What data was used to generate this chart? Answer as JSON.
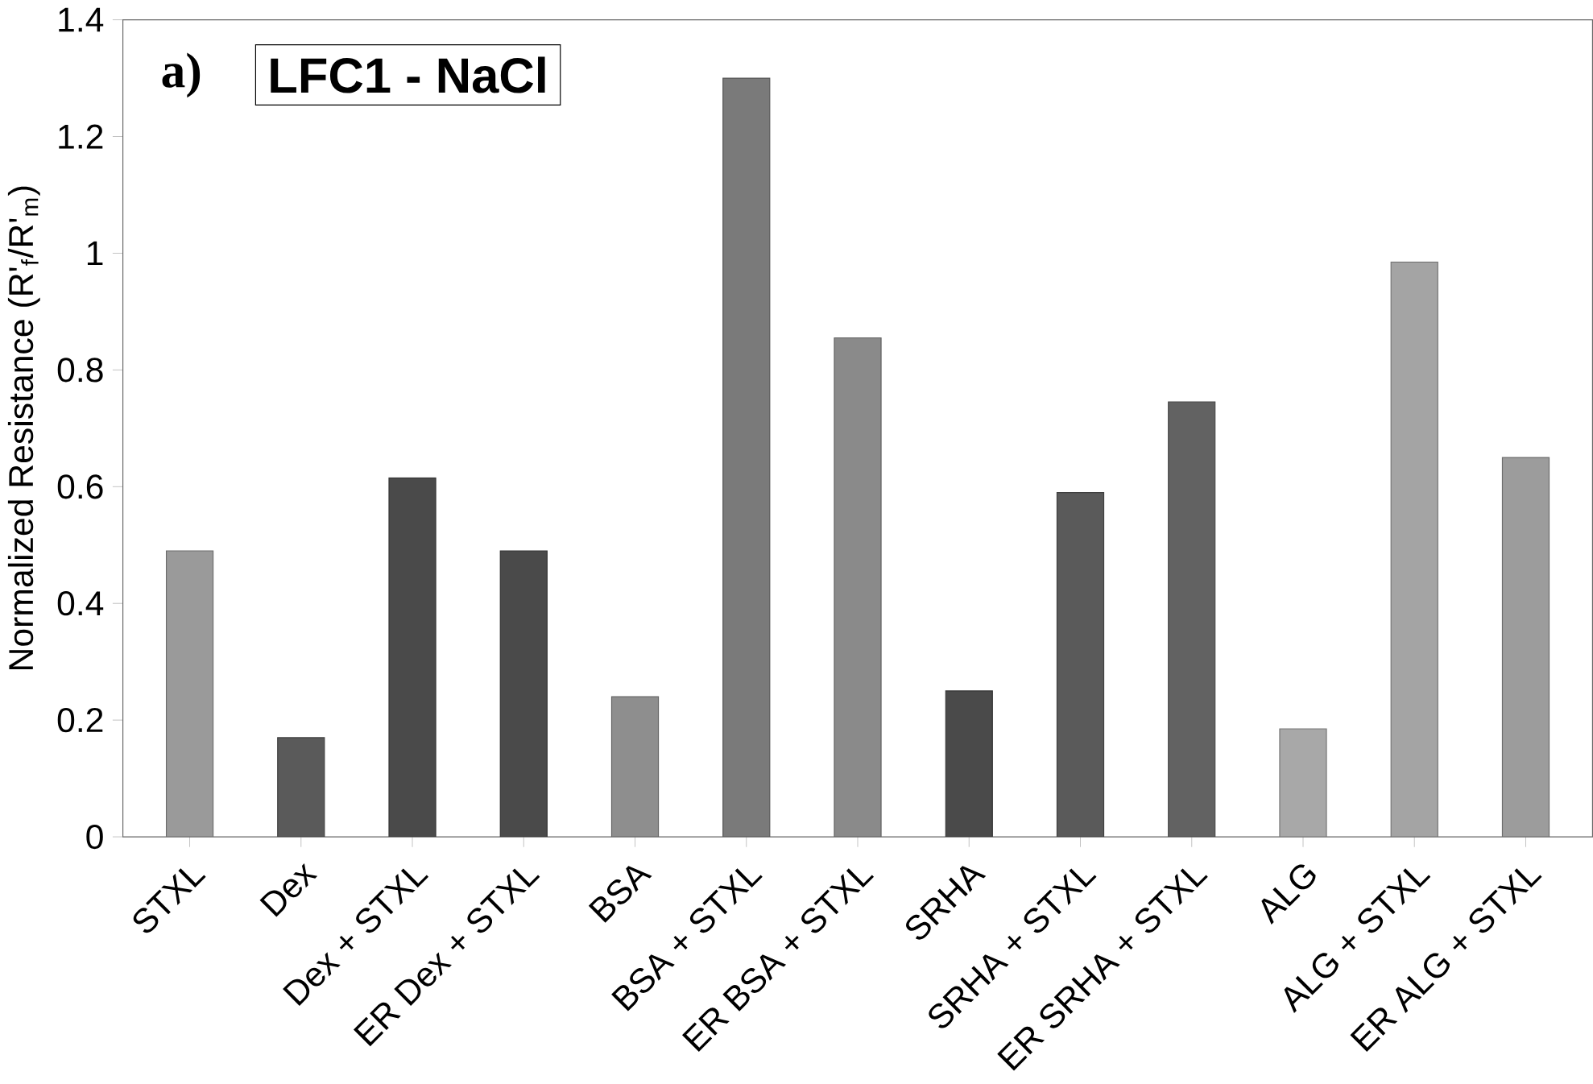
{
  "chart_data": {
    "type": "bar",
    "title": "LFC1 - NaCl",
    "annotations": [
      "a)"
    ],
    "ylabel": "Normalized Resistance  (R'$_{f}$/R'$_{m}$)",
    "categories": [
      "STXL",
      "Dex",
      "Dex + STXL",
      "ER Dex + STXL",
      "BSA",
      "BSA + STXL",
      "ER BSA + STXL",
      "SRHA",
      "SRHA + STXL",
      "ER SRHA + STXL",
      "ALG",
      "ALG + STXL",
      "ER ALG + STXL"
    ],
    "values": [
      0.49,
      0.17,
      0.615,
      0.49,
      0.24,
      1.3,
      0.855,
      0.25,
      0.59,
      0.745,
      0.185,
      0.985,
      0.65
    ],
    "colors": [
      "#9a9a9a",
      "#5a5a5a",
      "#4a4a4a",
      "#4a4a4a",
      "#8e8e8e",
      "#7a7a7a",
      "#8a8a8a",
      "#4a4a4a",
      "#5a5a5a",
      "#626262",
      "#a8a8a8",
      "#a4a4a4",
      "#9c9c9c"
    ],
    "ylim": [
      0,
      1.4
    ],
    "yticks": [
      0,
      0.2,
      0.4,
      0.6,
      0.8,
      1,
      1.2,
      1.4
    ],
    "grid": false
  }
}
